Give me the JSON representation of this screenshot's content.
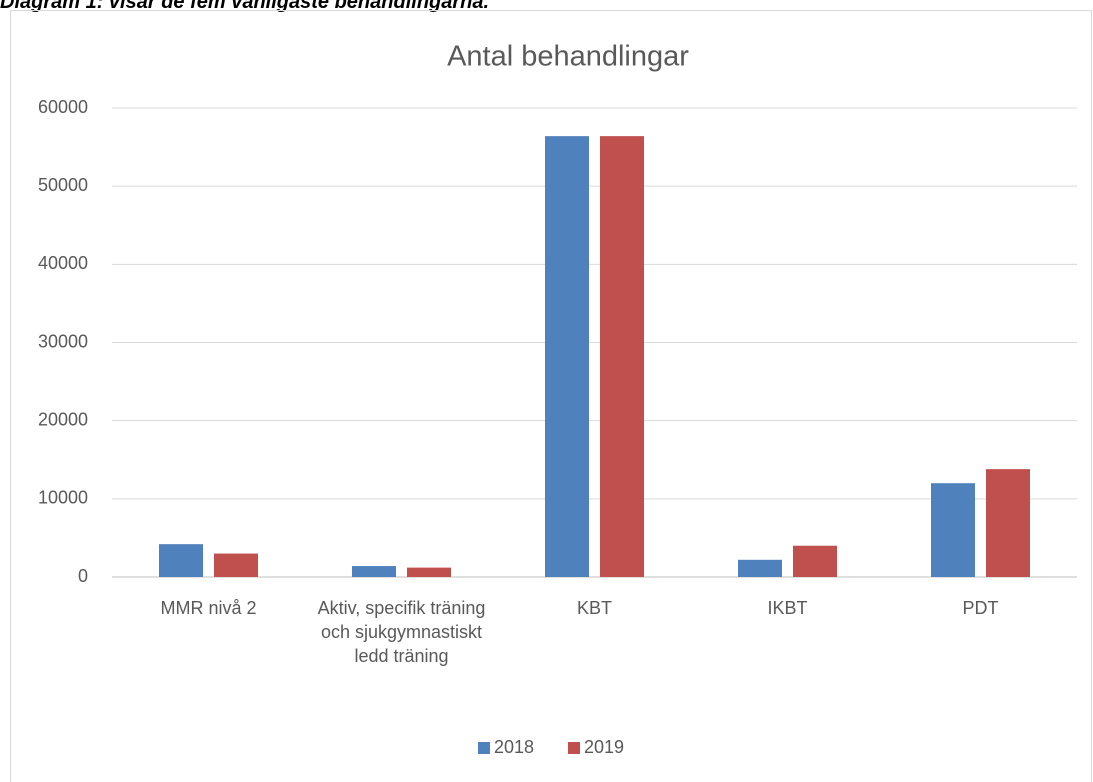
{
  "caption": "Diagram 1: visar de fem vanligaste behandlingarna.",
  "chart_data": {
    "type": "bar",
    "title": "Antal behandlingar",
    "categories": [
      "MMR nivå 2",
      "Aktiv, specifik träning och sjukgymnastiskt ledd träning",
      "KBT",
      "IKBT",
      "PDT"
    ],
    "series": [
      {
        "name": "2018",
        "color": "#4f81bd",
        "values": [
          4200,
          1400,
          56400,
          2200,
          12000
        ]
      },
      {
        "name": "2019",
        "color": "#c0504d",
        "values": [
          3000,
          1200,
          56400,
          4000,
          13800
        ]
      }
    ],
    "ylim": [
      0,
      60000
    ],
    "yticks": [
      0,
      10000,
      20000,
      30000,
      40000,
      50000,
      60000
    ],
    "grid": true,
    "legend": "bottom"
  }
}
